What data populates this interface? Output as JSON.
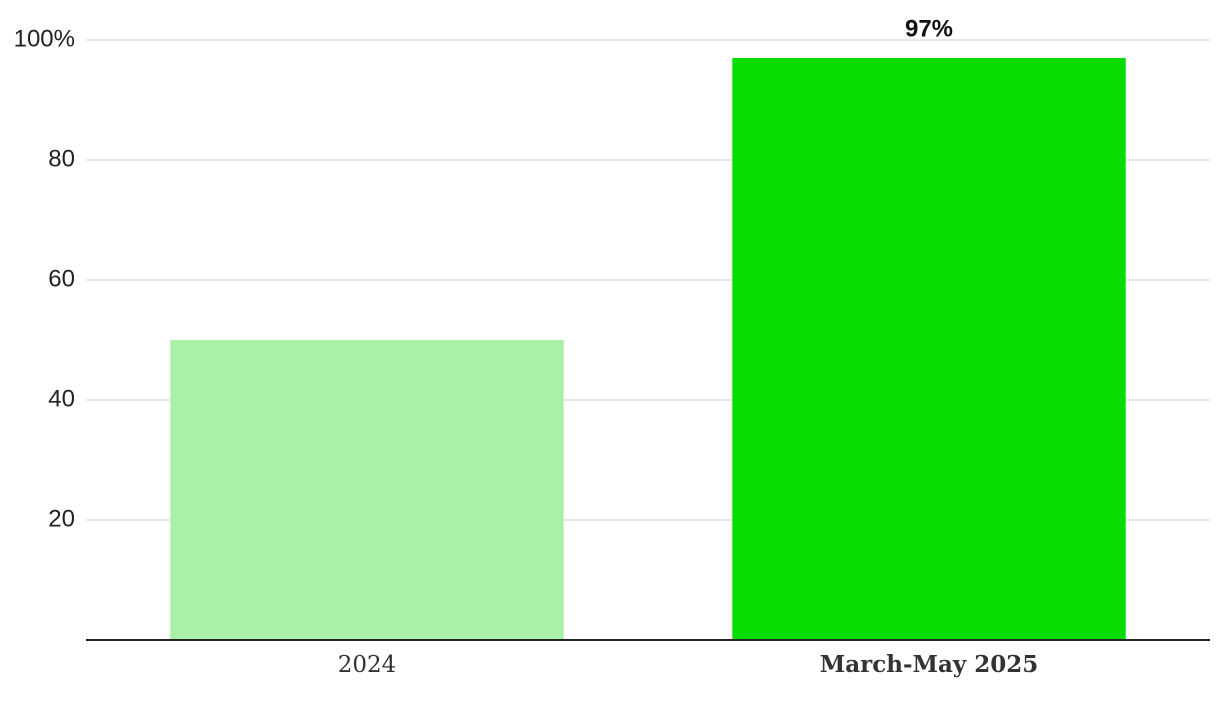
{
  "chart_data": {
    "type": "bar",
    "categories": [
      "2024",
      "March-May 2025"
    ],
    "values": [
      50,
      97
    ],
    "value_labels": [
      null,
      "97%"
    ],
    "colors": [
      "#a9f1a6",
      "#07dc00"
    ],
    "ylim": [
      0,
      100
    ],
    "yticks": [
      20,
      40,
      60,
      80,
      {
        "value": 100,
        "label": "100%"
      }
    ],
    "grid": true
  }
}
